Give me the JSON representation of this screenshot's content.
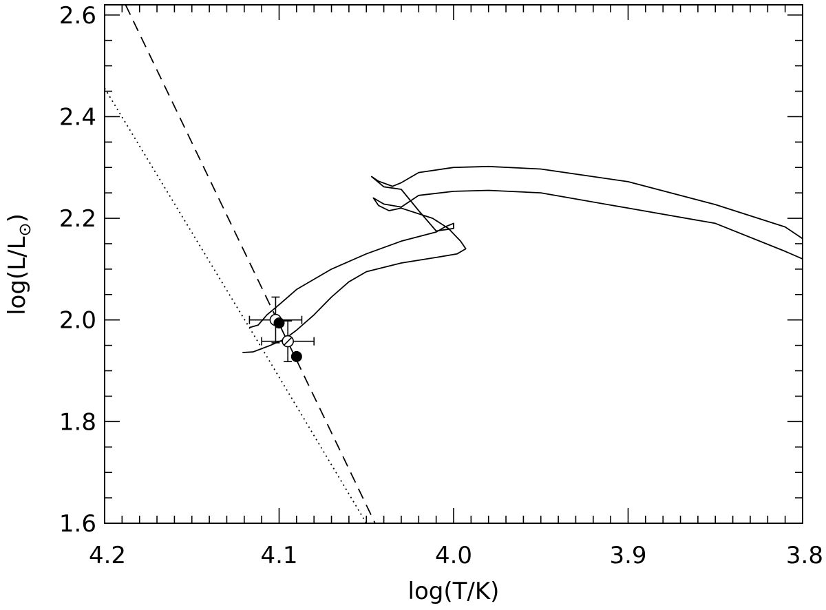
{
  "chart_data": {
    "type": "scatter",
    "title": "",
    "xlabel": "log(T/K)",
    "ylabel_parts": {
      "prefix": "log(L/L",
      "subscript": "⊙",
      "suffix": ")"
    },
    "x_reversed": true,
    "xlim": [
      4.2,
      3.8
    ],
    "ylim": [
      1.6,
      2.62
    ],
    "x_ticks": [
      "4.2",
      "4.1",
      "4.0",
      "3.9",
      "3.8"
    ],
    "x_tick_values": [
      4.2,
      4.1,
      4.0,
      3.9,
      3.8
    ],
    "x_minor_step": 0.01,
    "y_ticks": [
      "1.6",
      "1.8",
      "2.0",
      "2.2",
      "2.4",
      "2.6"
    ],
    "y_tick_values": [
      1.6,
      1.8,
      2.0,
      2.2,
      2.4,
      2.6
    ],
    "y_minor_step": 0.05,
    "grid": false,
    "lines": [
      {
        "style": "dashed",
        "points": [
          [
            4.188,
            2.62
          ],
          [
            4.045,
            1.6
          ]
        ]
      },
      {
        "style": "dotted",
        "points": [
          [
            4.2,
            2.456
          ],
          [
            4.11,
            1.945
          ],
          [
            4.05,
            1.6
          ]
        ]
      },
      {
        "style": "solid",
        "points": [
          [
            4.117,
            1.985
          ],
          [
            4.112,
            1.99
          ],
          [
            4.107,
            2.01
          ],
          [
            4.1,
            2.03
          ],
          [
            4.09,
            2.06
          ],
          [
            4.07,
            2.1
          ],
          [
            4.05,
            2.13
          ],
          [
            4.03,
            2.155
          ],
          [
            4.01,
            2.173
          ],
          [
            4.005,
            2.183
          ],
          [
            4.0,
            2.19
          ],
          [
            4.0,
            2.18
          ],
          [
            4.01,
            2.175
          ],
          [
            4.02,
            2.215
          ],
          [
            4.03,
            2.257
          ],
          [
            4.04,
            2.262
          ],
          [
            4.047,
            2.282
          ],
          [
            4.043,
            2.273
          ],
          [
            4.035,
            2.263
          ],
          [
            4.03,
            2.27
          ],
          [
            4.02,
            2.29
          ],
          [
            4.0,
            2.3
          ],
          [
            3.98,
            2.302
          ],
          [
            3.95,
            2.297
          ],
          [
            3.9,
            2.272
          ],
          [
            3.85,
            2.227
          ],
          [
            3.81,
            2.183
          ],
          [
            3.8,
            2.16
          ]
        ]
      },
      {
        "style": "solid",
        "points": [
          [
            4.121,
            1.936
          ],
          [
            4.115,
            1.937
          ],
          [
            4.105,
            1.95
          ],
          [
            4.097,
            1.962
          ],
          [
            4.09,
            1.98
          ],
          [
            4.08,
            2.01
          ],
          [
            4.07,
            2.045
          ],
          [
            4.06,
            2.075
          ],
          [
            4.05,
            2.095
          ],
          [
            4.03,
            2.112
          ],
          [
            4.01,
            2.123
          ],
          [
            3.998,
            2.13
          ],
          [
            3.993,
            2.14
          ],
          [
            3.996,
            2.155
          ],
          [
            4.003,
            2.18
          ],
          [
            4.012,
            2.2
          ],
          [
            4.03,
            2.22
          ],
          [
            4.037,
            2.215
          ],
          [
            4.043,
            2.225
          ],
          [
            4.046,
            2.24
          ],
          [
            4.04,
            2.228
          ],
          [
            4.03,
            2.222
          ],
          [
            4.02,
            2.245
          ],
          [
            4.0,
            2.253
          ],
          [
            3.98,
            2.255
          ],
          [
            3.95,
            2.25
          ],
          [
            3.9,
            2.22
          ],
          [
            3.85,
            2.19
          ],
          [
            3.81,
            2.135
          ],
          [
            3.8,
            2.12
          ]
        ]
      }
    ],
    "points_with_errors": [
      {
        "marker": "open-circle",
        "x": 4.102,
        "y": 2.0,
        "xerr": 0.015,
        "yerr": 0.045
      },
      {
        "marker": "open-circle-cross",
        "x": 4.095,
        "y": 1.958,
        "xerr": 0.015,
        "yerr": 0.04
      }
    ],
    "filled_points": [
      {
        "marker": "filled-circle",
        "x": 4.1,
        "y": 1.994
      },
      {
        "marker": "filled-circle",
        "x": 4.09,
        "y": 1.928
      }
    ]
  }
}
